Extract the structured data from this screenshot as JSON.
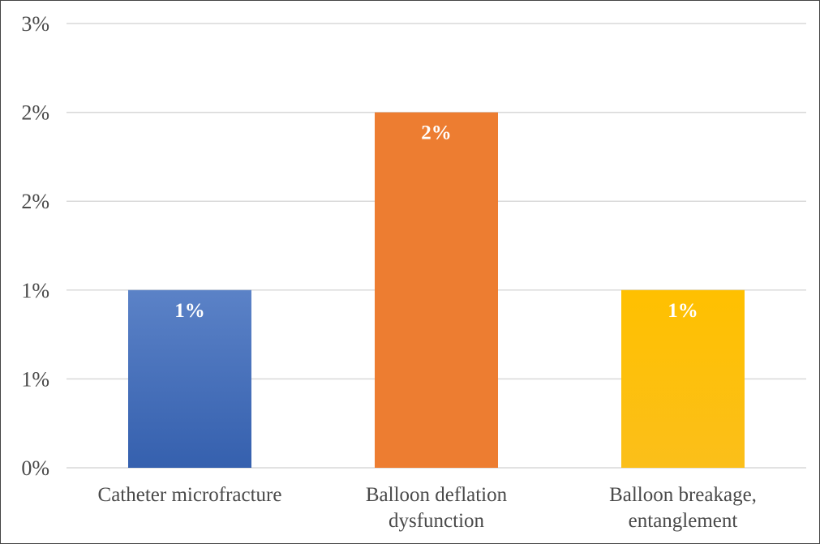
{
  "chart_data": {
    "type": "bar",
    "title": "",
    "xlabel": "",
    "ylabel": "",
    "categories": [
      [
        "Catheter microfracture"
      ],
      [
        "Balloon deflation",
        "dysfunction"
      ],
      [
        "Balloon breakage,",
        "entanglement"
      ]
    ],
    "values": [
      1.0,
      2.0,
      1.0
    ],
    "data_labels": [
      "1%",
      "2%",
      "1%"
    ],
    "bar_colors": [
      "#4472c4",
      "#ed7d31",
      "#ffc000"
    ],
    "ylim": [
      0,
      2.5
    ],
    "y_ticks": [
      0,
      0.5,
      1.0,
      1.5,
      2.0,
      2.5
    ],
    "y_tick_labels": [
      "0%",
      "1%",
      "1%",
      "2%",
      "2%",
      "3%"
    ],
    "grid": true,
    "legend": "none"
  }
}
